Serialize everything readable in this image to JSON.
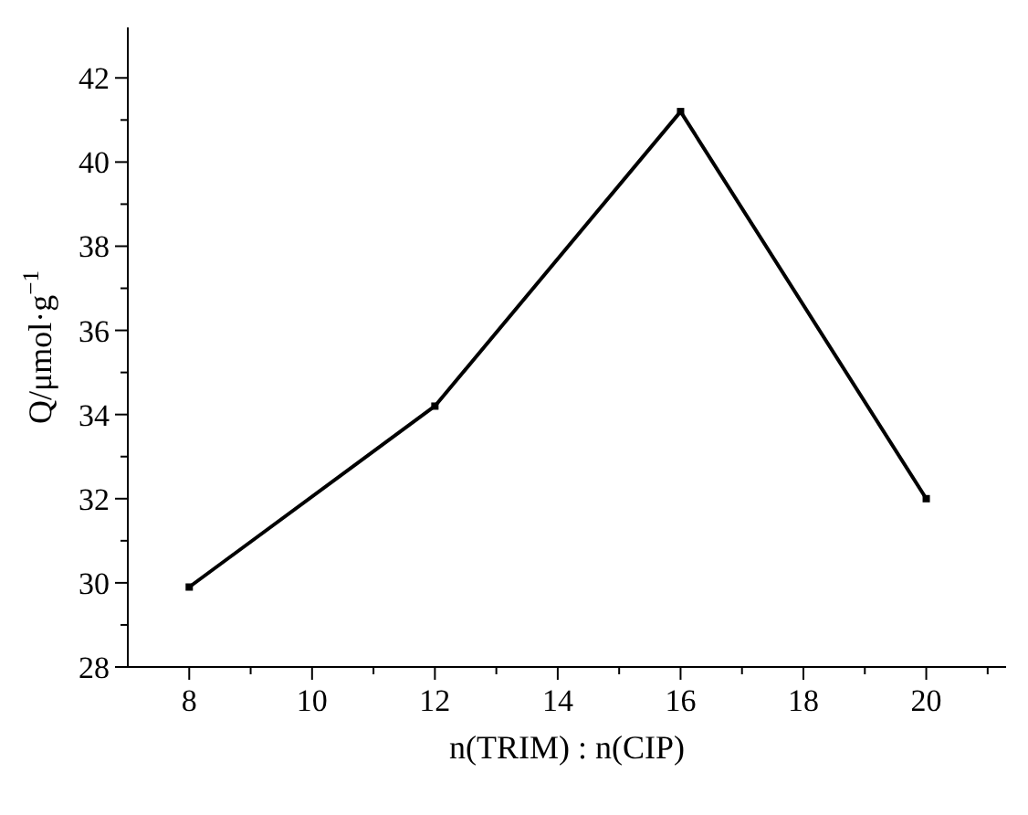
{
  "chart_data": {
    "type": "line",
    "xlabel": "n(TRIM) : n(CIP)",
    "ylabel": "Q/μmol·g$^{−1}$",
    "x": [
      8,
      12,
      16,
      20
    ],
    "series": [
      {
        "color": "#000000",
        "values": [
          29.9,
          34.2,
          41.2,
          32.0
        ]
      }
    ],
    "xlim": [
      7,
      21.3
    ],
    "ylim": [
      28,
      43.2
    ],
    "xticks": [
      8,
      {
        "value": 9,
        "label": null
      },
      10,
      {
        "value": 11,
        "label": null
      },
      12,
      {
        "value": 13,
        "label": null
      },
      14,
      {
        "value": 15,
        "label": null
      },
      16,
      {
        "value": 17,
        "label": null
      },
      18,
      {
        "value": 19,
        "label": null
      },
      20,
      {
        "value": 21,
        "label": null
      }
    ],
    "yticks": [
      28,
      {
        "value": 29,
        "label": null
      },
      30,
      {
        "value": 31,
        "label": null
      },
      32,
      {
        "value": 33,
        "label": null
      },
      34,
      {
        "value": 35,
        "label": null
      },
      36,
      {
        "value": 37,
        "label": null
      },
      38,
      {
        "value": 39,
        "label": null
      },
      40,
      {
        "value": 41,
        "label": null
      },
      42
    ],
    "marker": "square",
    "line_style": "solid"
  }
}
